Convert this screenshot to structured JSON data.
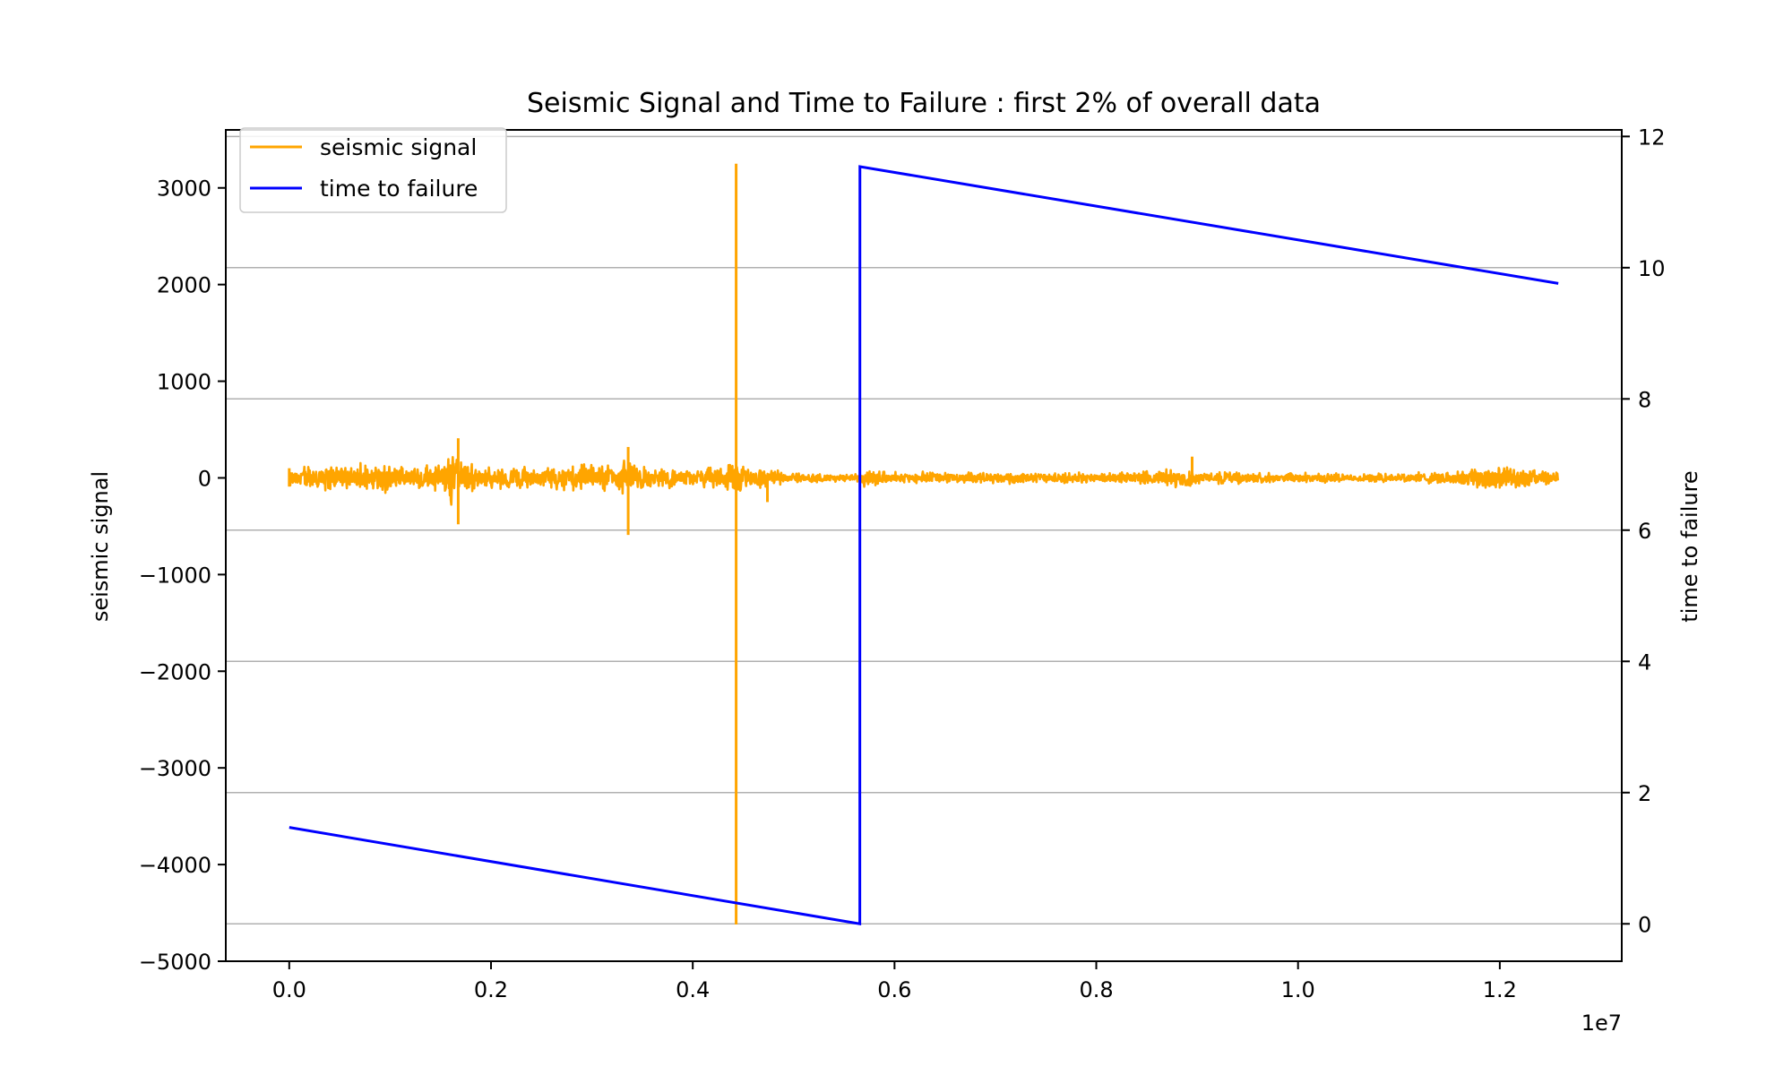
{
  "chart_data": {
    "type": "line",
    "title": "Seismic Signal and Time to Failure : first 2% of overall data",
    "xlabel": "",
    "x_offset_label": "1e7",
    "x_scale": 10000000,
    "xlim": [
      -0.0629,
      1.3209
    ],
    "x_ticks": [
      0.0,
      0.2,
      0.4,
      0.6,
      0.8,
      1.0,
      1.2
    ],
    "x_tick_labels": [
      "0.0",
      "0.2",
      "0.4",
      "0.6",
      "0.8",
      "1.0",
      "1.2"
    ],
    "y_left": {
      "label": "seismic signal",
      "lim": [
        -5000,
        3600
      ],
      "ticks": [
        -5000,
        -4000,
        -3000,
        -2000,
        -1000,
        0,
        1000,
        2000,
        3000
      ],
      "tick_labels": [
        "−5000",
        "−4000",
        "−3000",
        "−2000",
        "−1000",
        "0",
        "1000",
        "2000",
        "3000"
      ]
    },
    "y_right": {
      "label": "time to failure",
      "lim": [
        -0.57,
        12.1
      ],
      "ticks": [
        0,
        2,
        4,
        6,
        8,
        10,
        12
      ],
      "tick_labels": [
        "0",
        "2",
        "4",
        "6",
        "8",
        "10",
        "12"
      ],
      "grid": true
    },
    "legend": {
      "position": "top-left",
      "entries": [
        "seismic signal",
        "time to failure"
      ]
    },
    "colors": {
      "seismic": "#ffa500",
      "ttf": "#0000ff",
      "grid": "#b0b0b0",
      "axes": "#000000"
    },
    "series": [
      {
        "name": "seismic signal",
        "axis": "left",
        "x_range": [
          0.0,
          1.258
        ],
        "noise_envelope": [
          [
            0.0,
            110
          ],
          [
            0.015,
            160
          ],
          [
            0.05,
            170
          ],
          [
            0.1,
            160
          ],
          [
            0.15,
            150
          ],
          [
            0.16,
            410
          ],
          [
            0.17,
            200
          ],
          [
            0.2,
            140
          ],
          [
            0.25,
            130
          ],
          [
            0.3,
            170
          ],
          [
            0.33,
            180
          ],
          [
            0.335,
            300
          ],
          [
            0.34,
            150
          ],
          [
            0.4,
            90
          ],
          [
            0.43,
            140
          ],
          [
            0.44,
            170
          ],
          [
            0.46,
            150
          ],
          [
            0.48,
            100
          ],
          [
            0.5,
            60
          ],
          [
            0.566,
            40
          ],
          [
            0.57,
            120
          ],
          [
            0.6,
            70
          ],
          [
            0.7,
            70
          ],
          [
            0.8,
            60
          ],
          [
            0.895,
            120
          ],
          [
            0.9,
            70
          ],
          [
            1.0,
            60
          ],
          [
            1.1,
            50
          ],
          [
            1.15,
            80
          ],
          [
            1.19,
            140
          ],
          [
            1.22,
            120
          ],
          [
            1.258,
            60
          ]
        ],
        "spikes": [
          {
            "x": 0.0,
            "y": 100
          },
          {
            "x": 0.0,
            "y": -90
          },
          {
            "x": 0.1675,
            "y": 410
          },
          {
            "x": 0.1675,
            "y": -480
          },
          {
            "x": 0.336,
            "y": 320
          },
          {
            "x": 0.336,
            "y": -590
          },
          {
            "x": 0.443,
            "y": 3250
          },
          {
            "x": 0.443,
            "y": -4620
          },
          {
            "x": 0.474,
            "y": -250
          },
          {
            "x": 0.895,
            "y": 220
          }
        ]
      },
      {
        "name": "time to failure",
        "axis": "right",
        "points": [
          {
            "x": 0.0,
            "y": 1.4691
          },
          {
            "x": 0.5656,
            "y": 0.0
          },
          {
            "x": 0.5657,
            "y": 11.5408
          },
          {
            "x": 1.258,
            "y": 9.76
          }
        ]
      }
    ]
  }
}
